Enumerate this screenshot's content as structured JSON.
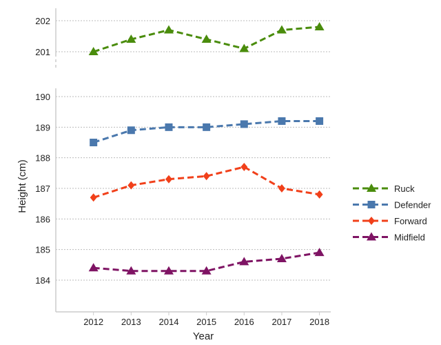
{
  "chart_data": {
    "type": "line",
    "xlabel": "Year",
    "ylabel": "Height (cm)",
    "x": [
      2012,
      2013,
      2014,
      2015,
      2016,
      2017,
      2018
    ],
    "x_tick_labels": [
      "2012",
      "2013",
      "2014",
      "2015",
      "2016",
      "2017",
      "2018"
    ],
    "xlim": [
      2011,
      2018.3
    ],
    "broken_y_axis": true,
    "upper_panel": {
      "ylim": [
        200.6,
        202.4
      ],
      "y_ticks": [
        201,
        202
      ],
      "y_tick_labels": [
        "201",
        "202"
      ]
    },
    "lower_panel": {
      "ylim": [
        183,
        190.3
      ],
      "y_ticks": [
        184,
        185,
        186,
        187,
        188,
        189,
        190
      ],
      "y_tick_labels": [
        "184",
        "185",
        "186",
        "187",
        "188",
        "189",
        "190"
      ]
    },
    "grid": "horizontal dotted",
    "legend_placement": "right",
    "series": [
      {
        "name": "Ruck",
        "panel": "upper",
        "color": "#4a8c0c",
        "marker": "triangle",
        "values": [
          201.0,
          201.4,
          201.7,
          201.4,
          201.1,
          201.7,
          201.8
        ]
      },
      {
        "name": "Defender",
        "panel": "lower",
        "color": "#4a78ad",
        "marker": "square",
        "values": [
          188.5,
          188.9,
          189.0,
          189.0,
          189.1,
          189.2,
          189.2
        ]
      },
      {
        "name": "Forward",
        "panel": "lower",
        "color": "#f1401a",
        "marker": "diamond",
        "values": [
          186.7,
          187.1,
          187.3,
          187.4,
          187.7,
          187.0,
          186.8
        ]
      },
      {
        "name": "Midfield",
        "panel": "lower",
        "color": "#7f1464",
        "marker": "triangle",
        "values": [
          184.4,
          184.3,
          184.3,
          184.3,
          184.6,
          184.7,
          184.9
        ]
      }
    ]
  }
}
